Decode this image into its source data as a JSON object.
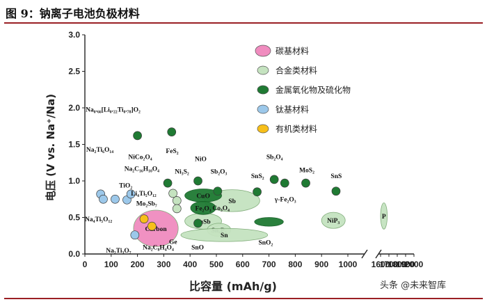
{
  "figure": {
    "title": "图 9：钠离子电池负极材料",
    "watermark": "头条 @未来智库"
  },
  "colors": {
    "carbon": "#f08cbf",
    "alloy": "#c5e3c0",
    "oxide": "#1f7a33",
    "titanate": "#9cc8ea",
    "organic": "#f7bf1a",
    "rule": "#9a1f24"
  },
  "chart_data": {
    "type": "scatter",
    "xlabel": "比容量 (mAh/g)",
    "ylabel": "电压 (V vs. Na⁺/Na)",
    "xlim": [
      0,
      2000
    ],
    "ylim": [
      0,
      3.0
    ],
    "x_ticks": [
      "0",
      "100",
      "200",
      "300",
      "400",
      "500",
      "600",
      "700",
      "800",
      "900",
      "1000",
      "1600",
      "1700",
      "1800",
      "1900",
      "2000"
    ],
    "y_ticks": [
      "0.0",
      "0.5",
      "1.0",
      "1.5",
      "2.0",
      "2.5",
      "3.0"
    ],
    "axis_break": [
      1000,
      1600
    ],
    "legend_position": "top-right",
    "legend": [
      {
        "key": "carbon",
        "label": "碳基材料"
      },
      {
        "key": "alloy",
        "label": "合金类材料"
      },
      {
        "key": "oxide",
        "label": "金属氧化物及硫化物"
      },
      {
        "key": "titanate",
        "label": "钛基材料"
      },
      {
        "key": "organic",
        "label": "有机类材料"
      }
    ],
    "series": [
      {
        "name": "钛基材料",
        "key": "titanate",
        "points": [
          {
            "x": 60,
            "y": 0.82
          },
          {
            "x": 70,
            "y": 0.75
          },
          {
            "x": 115,
            "y": 0.75
          },
          {
            "x": 160,
            "y": 0.74
          },
          {
            "x": 175,
            "y": 0.82
          },
          {
            "x": 190,
            "y": 0.26
          }
        ]
      },
      {
        "name": "有机类材料",
        "key": "organic",
        "points": [
          {
            "x": 225,
            "y": 0.48
          },
          {
            "x": 255,
            "y": 0.38
          }
        ]
      },
      {
        "name": "金属氧化物及硫化物",
        "key": "oxide",
        "points": [
          {
            "x": 200,
            "y": 1.62
          },
          {
            "x": 330,
            "y": 1.67
          },
          {
            "x": 315,
            "y": 0.97
          },
          {
            "x": 430,
            "y": 1.0
          },
          {
            "x": 505,
            "y": 0.86
          },
          {
            "x": 655,
            "y": 0.85
          },
          {
            "x": 720,
            "y": 1.02
          },
          {
            "x": 760,
            "y": 0.97
          },
          {
            "x": 840,
            "y": 0.97
          },
          {
            "x": 955,
            "y": 0.86
          },
          {
            "x": 430,
            "y": 0.42
          }
        ]
      },
      {
        "name": "合金类材料",
        "key": "alloy",
        "points": [
          {
            "x": 335,
            "y": 0.83
          },
          {
            "x": 350,
            "y": 0.73
          },
          {
            "x": 350,
            "y": 0.62
          }
        ]
      }
    ],
    "regions": [
      {
        "key": "carbon",
        "label": "Carbon",
        "cx": 270,
        "cy": 0.35,
        "rx": 85,
        "ry": 0.25
      },
      {
        "key": "alloy",
        "label": "Sb",
        "cx": 560,
        "cy": 0.73,
        "rx": 105,
        "ry": 0.15
      },
      {
        "key": "alloy",
        "label": "SnSb",
        "cx": 450,
        "cy": 0.45,
        "rx": 70,
        "ry": 0.11
      },
      {
        "key": "alloy",
        "label": "Sn₄P₃",
        "cx": 510,
        "cy": 0.33,
        "rx": 45,
        "ry": 0.09
      },
      {
        "key": "alloy",
        "label": "Sn",
        "cx": 530,
        "cy": 0.26,
        "rx": 165,
        "ry": 0.09
      },
      {
        "key": "alloy",
        "label": "NiP₃",
        "cx": 945,
        "cy": 0.46,
        "rx": 45,
        "ry": 0.11
      },
      {
        "key": "alloy",
        "label": "P",
        "cx": 1640,
        "cy": 0.52,
        "rx": 40,
        "ry": 0.18
      },
      {
        "key": "oxide",
        "label": "CuO",
        "cx": 450,
        "cy": 0.8,
        "rx": 70,
        "ry": 0.09
      },
      {
        "key": "oxide",
        "label": "Fe₂O₃",
        "cx": 450,
        "cy": 0.63,
        "rx": 48,
        "ry": 0.09
      },
      {
        "key": "oxide",
        "label": "",
        "cx": 700,
        "cy": 0.44,
        "rx": 55,
        "ry": 0.06
      }
    ],
    "annotations": [
      {
        "label": "Na₀.₆₆[Li₀.₂₂Ti₀.₇₈]O₂",
        "x": 3,
        "y": 1.95
      },
      {
        "label": "Na₂Ti₆O₁₄",
        "x": 5,
        "y": 1.4
      },
      {
        "label": "NiCo₂O₄",
        "x": 165,
        "y": 1.3
      },
      {
        "label": "FeS₂",
        "x": 308,
        "y": 1.38
      },
      {
        "label": "NiO",
        "x": 418,
        "y": 1.27
      },
      {
        "label": "Na₂C₁₆H₁₀O₄",
        "x": 150,
        "y": 1.14
      },
      {
        "label": "Ni₃S₂",
        "x": 342,
        "y": 1.1
      },
      {
        "label": "Sb₂O₃",
        "x": 478,
        "y": 1.1
      },
      {
        "label": "Sb₂O₄",
        "x": 690,
        "y": 1.3
      },
      {
        "label": "MoS₂",
        "x": 815,
        "y": 1.12
      },
      {
        "label": "SnS₂",
        "x": 632,
        "y": 1.04
      },
      {
        "label": "SnS",
        "x": 935,
        "y": 1.04
      },
      {
        "label": "TiO₂",
        "x": 130,
        "y": 0.91
      },
      {
        "label": "γ-Fe₂O₃",
        "x": 722,
        "y": 0.72
      },
      {
        "label": "Li₄Ti₅O₁₂",
        "x": 175,
        "y": 0.8
      },
      {
        "label": "Mo₂Sb₇",
        "x": 195,
        "y": 0.66
      },
      {
        "label": "Co₃O₄",
        "x": 485,
        "y": 0.6
      },
      {
        "label": "Na₄Ti₅O₁₂",
        "x": 0,
        "y": 0.45
      },
      {
        "label": "Ge",
        "x": 320,
        "y": 0.14
      },
      {
        "label": "Na₂C₈H₄O₄",
        "x": 220,
        "y": 0.06
      },
      {
        "label": "SnO",
        "x": 405,
        "y": 0.06
      },
      {
        "label": "SnO₂",
        "x": 660,
        "y": 0.13
      },
      {
        "label": "Na₂Ti₃O₇",
        "x": 80,
        "y": 0.02
      }
    ]
  }
}
